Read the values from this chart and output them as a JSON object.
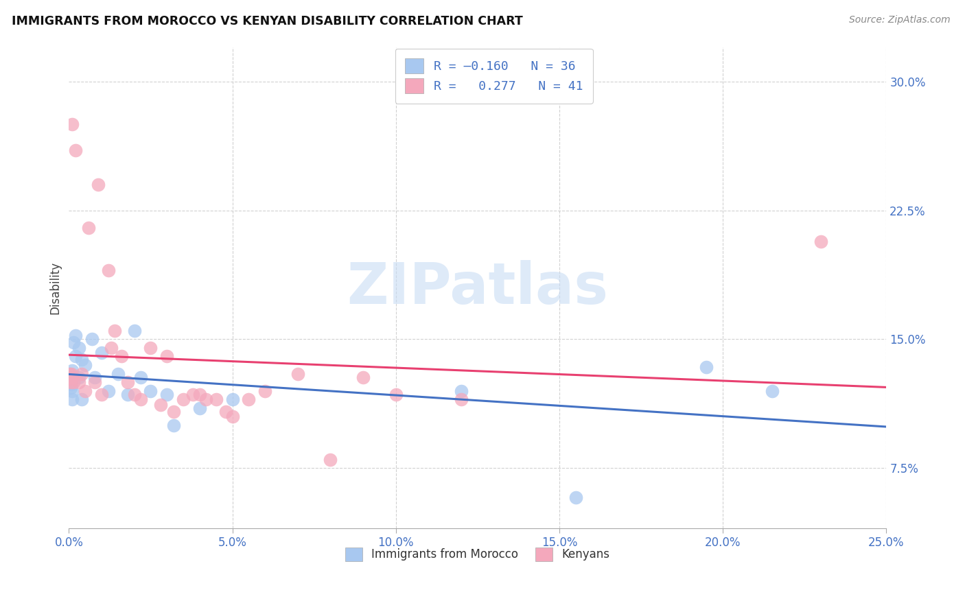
{
  "title": "IMMIGRANTS FROM MOROCCO VS KENYAN DISABILITY CORRELATION CHART",
  "source": "Source: ZipAtlas.com",
  "ylabel": "Disability",
  "watermark": "ZIPatlas",
  "xlim": [
    0.0,
    0.25
  ],
  "ylim": [
    0.04,
    0.32
  ],
  "xticks": [
    0.0,
    0.05,
    0.1,
    0.15,
    0.2,
    0.25
  ],
  "yticks": [
    0.075,
    0.15,
    0.225,
    0.3
  ],
  "ytick_labels": [
    "7.5%",
    "15.0%",
    "22.5%",
    "30.0%"
  ],
  "xtick_labels": [
    "0.0%",
    "5.0%",
    "10.0%",
    "15.0%",
    "20.0%",
    "25.0%"
  ],
  "color_blue": "#A8C8F0",
  "color_pink": "#F4A8BC",
  "line_color_blue": "#4472C4",
  "line_color_pink": "#E84070",
  "background_color": "#FFFFFF",
  "grid_color": "#CCCCCC",
  "blue_x": [
    0.0002,
    0.0003,
    0.0004,
    0.0005,
    0.0006,
    0.0007,
    0.0008,
    0.001,
    0.001,
    0.001,
    0.001,
    0.0015,
    0.002,
    0.002,
    0.003,
    0.003,
    0.004,
    0.004,
    0.005,
    0.007,
    0.008,
    0.01,
    0.012,
    0.015,
    0.018,
    0.02,
    0.022,
    0.025,
    0.03,
    0.032,
    0.04,
    0.05,
    0.12,
    0.155,
    0.195,
    0.215
  ],
  "blue_y": [
    0.128,
    0.125,
    0.13,
    0.122,
    0.127,
    0.124,
    0.126,
    0.132,
    0.12,
    0.115,
    0.128,
    0.148,
    0.14,
    0.152,
    0.145,
    0.128,
    0.115,
    0.138,
    0.135,
    0.15,
    0.128,
    0.142,
    0.12,
    0.13,
    0.118,
    0.155,
    0.128,
    0.12,
    0.118,
    0.1,
    0.11,
    0.115,
    0.12,
    0.058,
    0.134,
    0.12
  ],
  "pink_x": [
    0.0002,
    0.0004,
    0.0006,
    0.0008,
    0.001,
    0.001,
    0.0015,
    0.002,
    0.003,
    0.004,
    0.005,
    0.006,
    0.008,
    0.009,
    0.01,
    0.012,
    0.013,
    0.014,
    0.016,
    0.018,
    0.02,
    0.022,
    0.025,
    0.028,
    0.03,
    0.032,
    0.035,
    0.038,
    0.04,
    0.042,
    0.045,
    0.048,
    0.05,
    0.055,
    0.06,
    0.07,
    0.08,
    0.09,
    0.1,
    0.12,
    0.23
  ],
  "pink_y": [
    0.13,
    0.127,
    0.125,
    0.13,
    0.128,
    0.275,
    0.125,
    0.26,
    0.125,
    0.13,
    0.12,
    0.215,
    0.125,
    0.24,
    0.118,
    0.19,
    0.145,
    0.155,
    0.14,
    0.125,
    0.118,
    0.115,
    0.145,
    0.112,
    0.14,
    0.108,
    0.115,
    0.118,
    0.118,
    0.115,
    0.115,
    0.108,
    0.105,
    0.115,
    0.12,
    0.13,
    0.08,
    0.128,
    0.118,
    0.115,
    0.207
  ]
}
